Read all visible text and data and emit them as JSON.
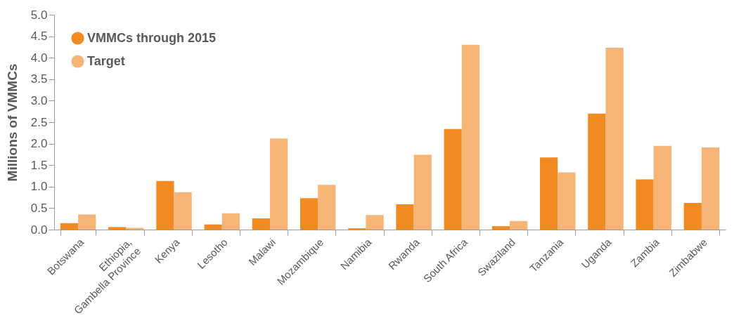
{
  "chart_data": {
    "type": "bar",
    "ylabel": "Millions of VMMCs",
    "categories": [
      "Botswana",
      "Ethiopia,\nGambella Province",
      "Kenya",
      "Lesotho",
      "Malawi",
      "Mozambique",
      "Namibia",
      "Rwanda",
      "South Africa",
      "Swaziland",
      "Tanzania",
      "Uganda",
      "Zambia",
      "Zimbabwe"
    ],
    "series": [
      {
        "name": "VMMCs through 2015",
        "color": "#f08a21",
        "values": [
          0.15,
          0.06,
          1.13,
          0.12,
          0.26,
          0.73,
          0.03,
          0.59,
          2.34,
          0.08,
          1.68,
          2.7,
          1.17,
          0.62
        ]
      },
      {
        "name": "Target",
        "color": "#f6b577",
        "values": [
          0.35,
          0.04,
          0.87,
          0.38,
          2.12,
          1.04,
          0.34,
          1.74,
          4.3,
          0.2,
          1.33,
          4.23,
          1.95,
          1.91
        ]
      }
    ],
    "ylim": [
      0,
      5.0
    ],
    "yticks": [
      {
        "value": 0,
        "label": "0.0"
      },
      {
        "value": 0.5,
        "label": "0.5"
      },
      {
        "value": 1,
        "label": "1.0"
      },
      {
        "value": 1.5,
        "label": "1.5"
      },
      {
        "value": 2,
        "label": "2.0"
      },
      {
        "value": 2.5,
        "label": "2.5"
      },
      {
        "value": 3,
        "label": "3.0"
      },
      {
        "value": 3.5,
        "label": "3.5"
      },
      {
        "value": 4,
        "label": "4.0"
      },
      {
        "value": 4.5,
        "label": "4.5"
      },
      {
        "value": 5,
        "label": "5.0"
      }
    ],
    "legend": "top left",
    "grid": false
  }
}
